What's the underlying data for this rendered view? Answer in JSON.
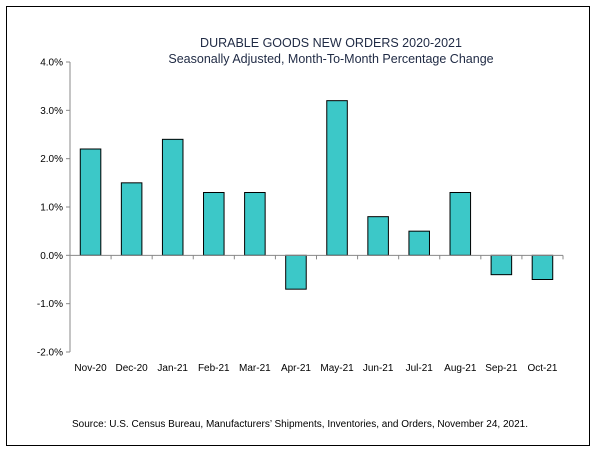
{
  "chart_data": {
    "type": "bar",
    "title": "DURABLE GOODS NEW ORDERS 2020-2021",
    "subtitle": "Seasonally Adjusted,  Month-To-Month Percentage Change",
    "categories": [
      "Nov-20",
      "Dec-20",
      "Jan-21",
      "Feb-21",
      "Mar-21",
      "Apr-21",
      "May-21",
      "Jun-21",
      "Jul-21",
      "Aug-21",
      "Sep-21",
      "Oct-21"
    ],
    "values": [
      2.2,
      1.5,
      2.4,
      1.3,
      1.3,
      -0.7,
      3.2,
      0.8,
      0.5,
      1.3,
      -0.4,
      -0.5
    ],
    "ylim": [
      -2.0,
      4.0
    ],
    "yticks": [
      "4.0%",
      "3.0%",
      "2.0%",
      "1.0%",
      "0.0%",
      "-1.0%",
      "-2.0%"
    ],
    "ytick_values": [
      4,
      3,
      2,
      1,
      0,
      -1,
      -2
    ],
    "xlabel": "",
    "ylabel": "",
    "bar_color": "#3cc8c8",
    "source": "Source: U.S. Census Bureau, Manufacturers’ Shipments, Inventories, and Orders, November 24, 2021."
  }
}
